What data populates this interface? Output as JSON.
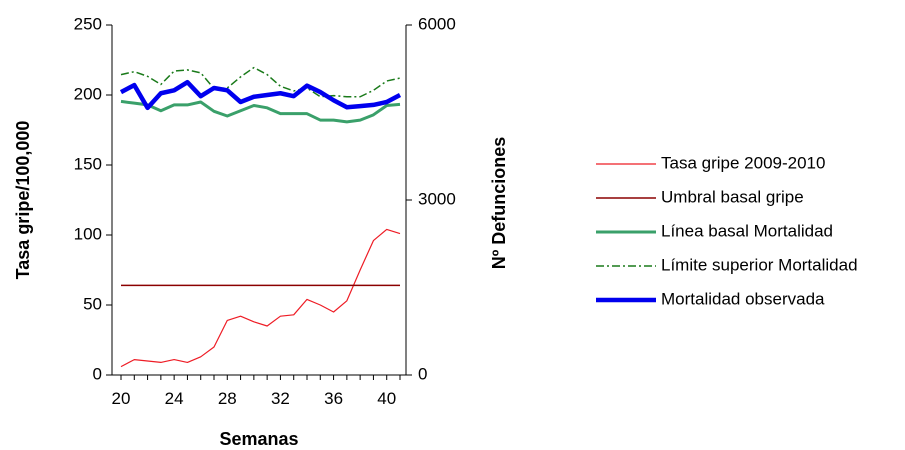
{
  "chart_data": {
    "type": "line",
    "title": "",
    "xlabel": "Semanas",
    "ylabel_left": "Tasa gripe/100,000",
    "ylabel_right": "Nº Defunciones",
    "x": [
      20,
      21,
      22,
      23,
      24,
      25,
      26,
      27,
      28,
      29,
      30,
      31,
      32,
      33,
      34,
      35,
      36,
      37,
      38,
      39,
      40,
      41
    ],
    "x_ticks": [
      20,
      24,
      28,
      32,
      36,
      40
    ],
    "xlim": [
      20,
      41
    ],
    "ylim_left": [
      0,
      250
    ],
    "y_ticks_left": [
      0,
      50,
      100,
      150,
      200,
      250
    ],
    "ylim_right": [
      0,
      6000
    ],
    "y_ticks_right": [
      0,
      3000,
      6000
    ],
    "grid": false,
    "legend_position": "right",
    "series": [
      {
        "name": "Tasa gripe 2009-2010",
        "axis": "left",
        "color": "#ee1c25",
        "width": 1.2,
        "dash": "",
        "values": [
          6,
          11,
          10,
          9,
          11,
          9,
          13,
          20,
          39,
          42,
          38,
          35,
          42,
          43,
          54,
          50,
          45,
          53,
          75,
          96,
          104,
          101
        ]
      },
      {
        "name": "Umbral basal gripe",
        "axis": "left",
        "color": "#8b0000",
        "width": 1.5,
        "dash": "",
        "values": [
          64,
          64,
          64,
          64,
          64,
          64,
          64,
          64,
          64,
          64,
          64,
          64,
          64,
          64,
          64,
          64,
          64,
          64,
          64,
          64,
          64,
          64
        ]
      },
      {
        "name": "Línea basal Mortalidad",
        "axis": "right",
        "color": "#3aa06a",
        "width": 3,
        "dash": "",
        "values": [
          4690,
          4660,
          4630,
          4530,
          4630,
          4630,
          4680,
          4520,
          4440,
          4530,
          4620,
          4580,
          4480,
          4480,
          4480,
          4370,
          4370,
          4340,
          4370,
          4460,
          4620,
          4640
        ]
      },
      {
        "name": "Límite superior Mortalidad",
        "axis": "right",
        "color": "#1a7a1a",
        "width": 1.5,
        "dash": "8,3,2,3",
        "values": [
          5150,
          5200,
          5120,
          4980,
          5210,
          5230,
          5180,
          4910,
          4920,
          5110,
          5270,
          5150,
          4950,
          4870,
          4920,
          4770,
          4790,
          4770,
          4770,
          4880,
          5040,
          5090
        ]
      },
      {
        "name": "Mortalidad observada",
        "axis": "right",
        "color": "#0000ee",
        "width": 4.5,
        "dash": "",
        "values": [
          4850,
          4970,
          4580,
          4830,
          4880,
          5020,
          4780,
          4920,
          4880,
          4680,
          4770,
          4800,
          4830,
          4780,
          4960,
          4850,
          4710,
          4590,
          4610,
          4630,
          4680,
          4800
        ]
      }
    ]
  }
}
